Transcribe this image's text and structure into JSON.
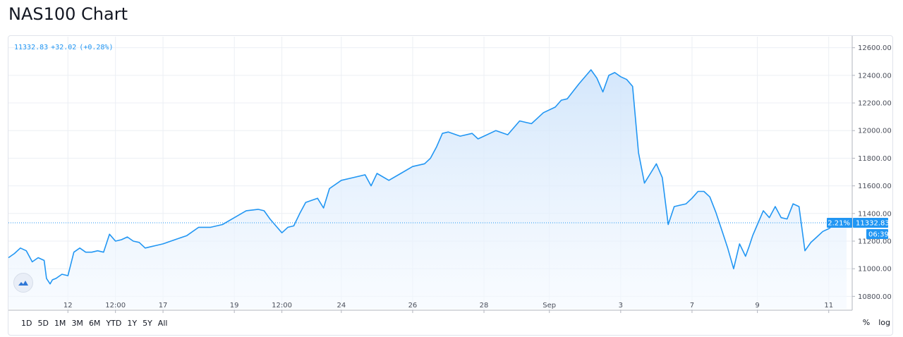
{
  "page": {
    "title": "NAS100 Chart"
  },
  "legend": {
    "price": "11332.83",
    "change": "+32.02",
    "change_pct": "(+0.28%)"
  },
  "price_tags": {
    "pct": "2.21%",
    "price": "11332.83",
    "countdown": "06:39"
  },
  "range_buttons": [
    "1D",
    "5D",
    "1M",
    "3M",
    "6M",
    "YTD",
    "1Y",
    "5Y",
    "All"
  ],
  "scale_buttons": [
    "%",
    "log"
  ],
  "colors": {
    "line": "#2196f3",
    "grid": "#eceff4",
    "fill_top": "#cfe4fb",
    "fill_bottom": "#f4f9ff",
    "tag_bg": "#2196f3",
    "text": "#131722"
  },
  "chart_data": {
    "type": "area",
    "y_ticks": [
      10800,
      11000,
      11200,
      11400,
      11600,
      11800,
      12000,
      12200,
      12400,
      12600
    ],
    "y_tick_labels": [
      "10800.00",
      "11000.00",
      "11200.00",
      "11400.00",
      "11600.00",
      "11800.00",
      "12000.00",
      "12200.00",
      "12400.00",
      "12600.00"
    ],
    "ylim": [
      10710,
      12680
    ],
    "x_ticks": [
      {
        "label": "12",
        "t": 5.0
      },
      {
        "label": "12:00",
        "t": 9.0
      },
      {
        "label": "17",
        "t": 13.0
      },
      {
        "label": "19",
        "t": 19.0
      },
      {
        "label": "12:00",
        "t": 23.0
      },
      {
        "label": "24",
        "t": 28.0
      },
      {
        "label": "26",
        "t": 34.0
      },
      {
        "label": "28",
        "t": 40.0
      },
      {
        "label": "Sep",
        "t": 45.5
      },
      {
        "label": "3",
        "t": 51.5
      },
      {
        "label": "7",
        "t": 57.5
      },
      {
        "label": "9",
        "t": 63.0
      },
      {
        "label": "11",
        "t": 69.0
      }
    ],
    "xlim": [
      0,
      70.5
    ],
    "grid": true,
    "current_value": 11332.83,
    "series": [
      {
        "x": [
          0.0,
          0.5,
          1.0,
          1.5,
          2.0,
          2.5,
          3.0,
          3.2,
          3.5,
          3.7,
          4.0,
          4.5,
          5.0,
          5.5,
          6.0,
          6.5,
          7.0,
          7.5,
          8.0,
          8.5,
          9.0,
          9.5,
          10.0,
          10.5,
          11.0,
          11.5,
          12.0,
          12.5,
          13.0,
          14.0,
          15.0,
          16.0,
          17.0,
          18.0,
          19.0,
          20.0,
          21.0,
          21.5,
          22.0,
          22.5,
          23.0,
          23.5,
          24.0,
          24.5,
          25.0,
          26.0,
          26.5,
          27.0,
          28.0,
          29.0,
          30.0,
          30.5,
          31.0,
          32.0,
          33.0,
          34.0,
          35.0,
          35.5,
          36.0,
          36.5,
          37.0,
          38.0,
          39.0,
          39.5,
          40.0,
          41.0,
          42.0,
          43.0,
          43.5,
          44.0,
          45.0,
          46.0,
          46.5,
          47.0,
          48.0,
          49.0,
          49.5,
          50.0,
          50.5,
          51.0,
          51.5,
          52.0,
          52.5,
          53.0,
          53.5,
          54.0,
          54.5,
          55.0,
          55.5,
          56.0,
          56.5,
          57.0,
          57.5,
          58.0,
          58.5,
          59.0,
          59.5,
          60.0,
          60.5,
          61.0,
          61.5,
          62.0,
          62.3,
          62.6,
          63.0,
          63.5,
          64.0,
          64.5,
          65.0,
          65.5,
          66.0,
          66.5,
          67.0,
          67.5,
          68.0,
          68.5,
          69.0,
          69.5,
          70.0,
          70.5
        ],
        "y": [
          11080,
          11110,
          11150,
          11130,
          11050,
          11080,
          11060,
          10930,
          10890,
          10920,
          10930,
          10960,
          10950,
          11120,
          11150,
          11120,
          11120,
          11130,
          11120,
          11250,
          11200,
          11210,
          11230,
          11200,
          11190,
          11150,
          11160,
          11170,
          11180,
          11210,
          11240,
          11300,
          11300,
          11320,
          11370,
          11420,
          11430,
          11420,
          11360,
          11310,
          11260,
          11300,
          11310,
          11400,
          11480,
          11510,
          11440,
          11580,
          11640,
          11660,
          11680,
          11600,
          11690,
          11640,
          11690,
          11740,
          11760,
          11800,
          11880,
          11980,
          11990,
          11960,
          11980,
          11940,
          11960,
          12000,
          11970,
          12070,
          12060,
          12050,
          12130,
          12170,
          12220,
          12230,
          12340,
          12440,
          12380,
          12280,
          12400,
          12420,
          12390,
          12370,
          12320,
          11840,
          11620,
          11690,
          11760,
          11660,
          11320,
          11450,
          11460,
          11470,
          11510,
          11560,
          11560,
          11520,
          11410,
          11280,
          11150,
          11000,
          11180,
          11090,
          11160,
          11240,
          11320,
          11420,
          11370,
          11450,
          11370,
          11360,
          11470,
          11450,
          11130,
          11190,
          11230,
          11270,
          11290,
          11320,
          11330,
          11332.83
        ]
      }
    ]
  }
}
